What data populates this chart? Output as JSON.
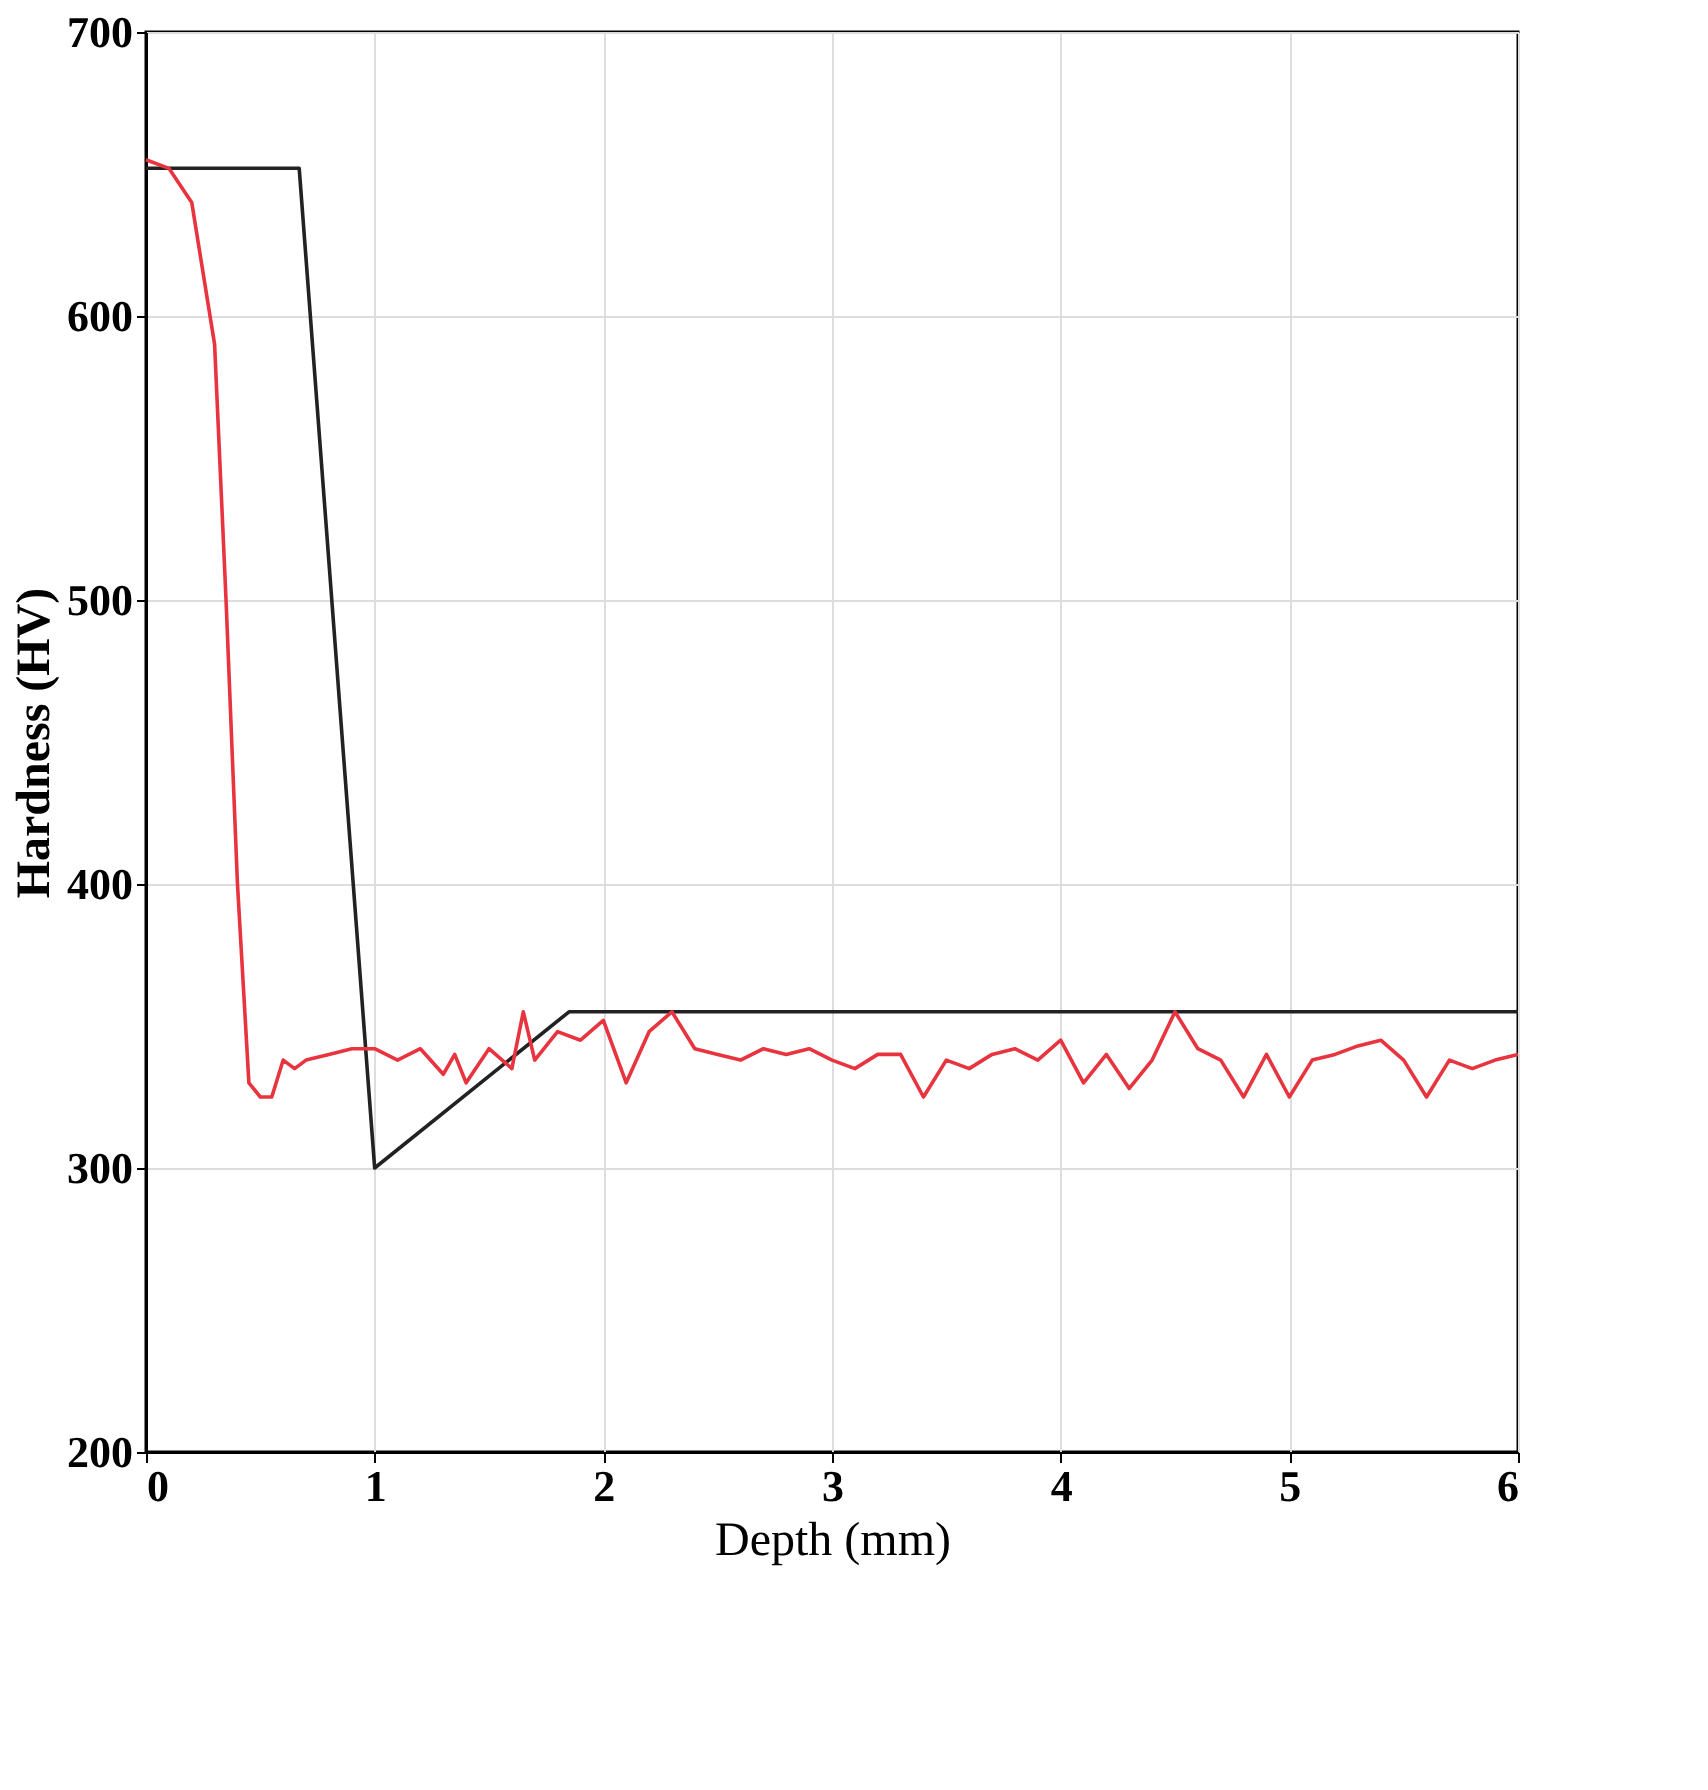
{
  "chart_data": {
    "type": "line",
    "xlabel": "Depth (mm)",
    "ylabel": "Hardness (HV)",
    "xlim": [
      0,
      6
    ],
    "xticks": [
      0,
      1,
      2,
      3,
      4,
      5,
      6
    ],
    "ylim": [
      200,
      700
    ],
    "yticks": [
      200,
      300,
      400,
      500,
      600,
      700
    ],
    "grid": true,
    "series": [
      {
        "color": "#222222",
        "x": [
          0,
          0.67,
          1.0,
          1.85,
          6
        ],
        "values": [
          652,
          652,
          300,
          355,
          355
        ]
      },
      {
        "color": "#e8343f",
        "x": [
          0,
          0.1,
          0.2,
          0.3,
          0.35,
          0.4,
          0.45,
          0.5,
          0.55,
          0.6,
          0.65,
          0.7,
          0.8,
          0.9,
          1.0,
          1.1,
          1.2,
          1.3,
          1.35,
          1.4,
          1.5,
          1.6,
          1.65,
          1.7,
          1.8,
          1.9,
          2.0,
          2.1,
          2.2,
          2.3,
          2.4,
          2.5,
          2.6,
          2.7,
          2.8,
          2.9,
          3.0,
          3.1,
          3.2,
          3.3,
          3.4,
          3.5,
          3.6,
          3.7,
          3.8,
          3.9,
          4.0,
          4.1,
          4.2,
          4.3,
          4.4,
          4.5,
          4.6,
          4.7,
          4.8,
          4.9,
          5.0,
          5.1,
          5.2,
          5.3,
          5.4,
          5.5,
          5.6,
          5.7,
          5.8,
          5.9,
          6.0
        ],
        "values": [
          655,
          652,
          640,
          590,
          500,
          400,
          330,
          325,
          325,
          338,
          335,
          338,
          340,
          342,
          342,
          338,
          342,
          333,
          340,
          330,
          342,
          335,
          355,
          338,
          348,
          345,
          352,
          330,
          348,
          355,
          342,
          340,
          338,
          342,
          340,
          342,
          338,
          335,
          340,
          340,
          325,
          338,
          335,
          340,
          342,
          338,
          345,
          330,
          340,
          328,
          338,
          355,
          342,
          338,
          325,
          340,
          325,
          338,
          340,
          343,
          345,
          338,
          325,
          338,
          335,
          338,
          340
        ]
      }
    ]
  }
}
